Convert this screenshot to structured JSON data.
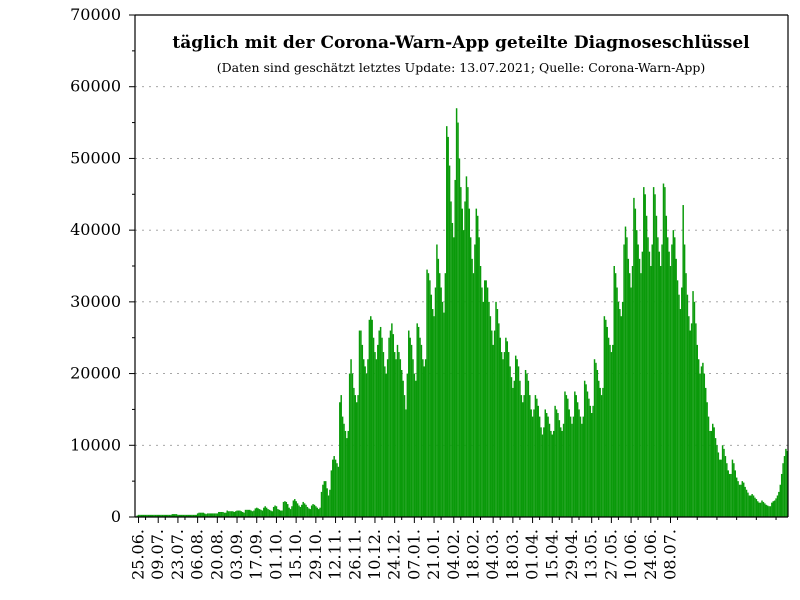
{
  "chart_data": {
    "type": "bar",
    "title": "täglich mit der Corona-Warn-App geteilte Diagnoseschlüssel",
    "subtitle": "(Daten sind geschätzt letztes Update: 13.07.2021; Quelle: Corona-Warn-App)",
    "xlabel": "",
    "ylabel": "",
    "ylim": [
      0,
      70000
    ],
    "y_ticks": [
      0,
      10000,
      20000,
      30000,
      40000,
      50000,
      60000,
      70000
    ],
    "x_tick_labels": [
      "25.06.",
      "09.07.",
      "23.07.",
      "06.08.",
      "20.08.",
      "03.09.",
      "17.09.",
      "01.10.",
      "15.10.",
      "29.10.",
      "12.11.",
      "26.11.",
      "10.12.",
      "24.12.",
      "07.01.",
      "21.01.",
      "04.02.",
      "18.02.",
      "04.03.",
      "18.03.",
      "01.04.",
      "15.04.",
      "29.04.",
      "13.05.",
      "27.05.",
      "10.06.",
      "24.06.",
      "08.07."
    ],
    "first_date": "2020-06-23",
    "grid": true,
    "bar_color": "#0a9a0a",
    "values": [
      0,
      200,
      300,
      300,
      300,
      300,
      300,
      300,
      300,
      300,
      300,
      300,
      300,
      300,
      300,
      300,
      300,
      300,
      300,
      300,
      300,
      300,
      300,
      300,
      300,
      300,
      400,
      400,
      400,
      400,
      300,
      300,
      300,
      300,
      300,
      300,
      300,
      300,
      300,
      300,
      300,
      300,
      300,
      300,
      500,
      600,
      600,
      600,
      600,
      500,
      400,
      500,
      500,
      500,
      500,
      500,
      500,
      500,
      500,
      700,
      700,
      700,
      700,
      600,
      600,
      900,
      800,
      800,
      800,
      800,
      700,
      800,
      900,
      900,
      900,
      800,
      700,
      600,
      1000,
      1000,
      1000,
      1000,
      900,
      800,
      900,
      1200,
      1300,
      1200,
      1100,
      1000,
      900,
      1300,
      1500,
      1300,
      1100,
      1000,
      900,
      800,
      1400,
      1600,
      1500,
      1100,
      1000,
      900,
      900,
      2100,
      2200,
      2100,
      1800,
      1300,
      1100,
      1500,
      2300,
      2500,
      2200,
      1900,
      1600,
      1400,
      1700,
      2100,
      1900,
      1700,
      1400,
      1200,
      1100,
      1600,
      1800,
      1700,
      1500,
      1300,
      1100,
      1300,
      3500,
      4500,
      5000,
      5000,
      4000,
      3000,
      3800,
      6500,
      8000,
      8500,
      8000,
      7500,
      7000,
      16000,
      17000,
      14000,
      13000,
      12000,
      11000,
      12000,
      20000,
      22000,
      20000,
      18000,
      17000,
      16000,
      17000,
      26000,
      26000,
      24000,
      22000,
      21000,
      20000,
      22000,
      27500,
      28000,
      27500,
      25000,
      23000,
      22000,
      24000,
      26000,
      26500,
      25000,
      23000,
      21000,
      20000,
      22000,
      25000,
      26000,
      27000,
      25500,
      23000,
      22000,
      24000,
      23000,
      22000,
      20500,
      19000,
      17000,
      15000,
      20000,
      26000,
      25000,
      24000,
      22000,
      20000,
      19000,
      27000,
      26500,
      25000,
      24000,
      22000,
      21000,
      22000,
      34500,
      34000,
      33000,
      31000,
      29000,
      28000,
      32000,
      38000,
      36000,
      34000,
      32000,
      30000,
      28500,
      34000,
      54500,
      53000,
      49000,
      44000,
      41000,
      39000,
      47000,
      57000,
      55000,
      50000,
      46000,
      43000,
      40000,
      44000,
      47500,
      46000,
      43000,
      39000,
      36000,
      34000,
      38000,
      43000,
      42000,
      39000,
      35000,
      32000,
      30000,
      33000,
      33000,
      32000,
      30000,
      28000,
      26000,
      24000,
      26000,
      30000,
      29000,
      27000,
      25000,
      23000,
      22000,
      23000,
      25000,
      24500,
      23000,
      21000,
      19500,
      18000,
      19000,
      22500,
      22000,
      21000,
      19000,
      17000,
      16000,
      17000,
      20500,
      20000,
      19000,
      17000,
      15000,
      14000,
      15000,
      17000,
      16500,
      15500,
      14000,
      12500,
      11500,
      12500,
      15000,
      14500,
      14000,
      13000,
      12000,
      11500,
      12000,
      15500,
      15000,
      14500,
      13500,
      12500,
      12000,
      13000,
      17500,
      17000,
      16500,
      15000,
      14000,
      13000,
      14000,
      17500,
      17000,
      16000,
      15000,
      14000,
      13000,
      14000,
      19000,
      18500,
      17500,
      16500,
      15500,
      14500,
      15500,
      22000,
      21500,
      20500,
      19000,
      18000,
      17000,
      18000,
      28000,
      27500,
      26500,
      25000,
      24000,
      23000,
      24000,
      35000,
      34000,
      32000,
      30000,
      29000,
      28000,
      30000,
      38000,
      40500,
      39000,
      36000,
      34000,
      32000,
      35000,
      44500,
      43000,
      40000,
      38000,
      36000,
      34000,
      37000,
      46000,
      45000,
      42000,
      39000,
      37000,
      35000,
      38000,
      46000,
      45000,
      42000,
      39000,
      37000,
      35000,
      38000,
      46500,
      46000,
      42000,
      39000,
      37000,
      35000,
      38000,
      40000,
      39000,
      36000,
      33000,
      31000,
      29000,
      32000,
      43500,
      38000,
      34000,
      31000,
      28000,
      26000,
      27000,
      31500,
      30000,
      27000,
      24000,
      22000,
      20000,
      21000,
      21500,
      20000,
      18000,
      16000,
      14000,
      12000,
      12000,
      13000,
      12500,
      11000,
      10000,
      9000,
      8000,
      8000,
      10000,
      9500,
      8500,
      7500,
      6500,
      6000,
      6000,
      8000,
      7500,
      6500,
      5500,
      5000,
      4500,
      4500,
      5000,
      4800,
      4200,
      3800,
      3400,
      3000,
      3000,
      3200,
      3000,
      2700,
      2500,
      2200,
      2000,
      2000,
      2300,
      2100,
      1900,
      1700,
      1600,
      1500,
      1500,
      2000,
      2200,
      2300,
      2600,
      3000,
      3500,
      4500,
      6000,
      7500,
      8500,
      9500,
      9200
    ]
  }
}
